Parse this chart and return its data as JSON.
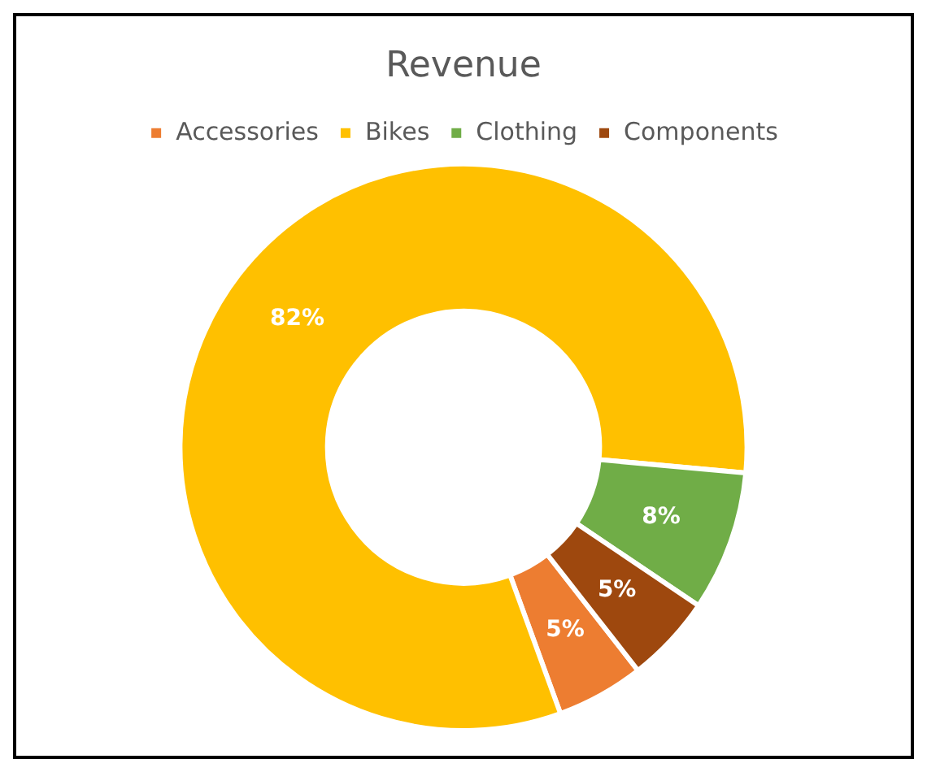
{
  "chart_data": {
    "type": "donut",
    "title": "Revenue",
    "categories": [
      "Accessories",
      "Bikes",
      "Clothing",
      "Components"
    ],
    "values": [
      5,
      82,
      8,
      5
    ],
    "colors": [
      "#ed7d31",
      "#ffc000",
      "#70ad47",
      "#9e480e"
    ],
    "value_labels": [
      "5%",
      "82%",
      "8%",
      "5%"
    ],
    "legend": "top"
  }
}
